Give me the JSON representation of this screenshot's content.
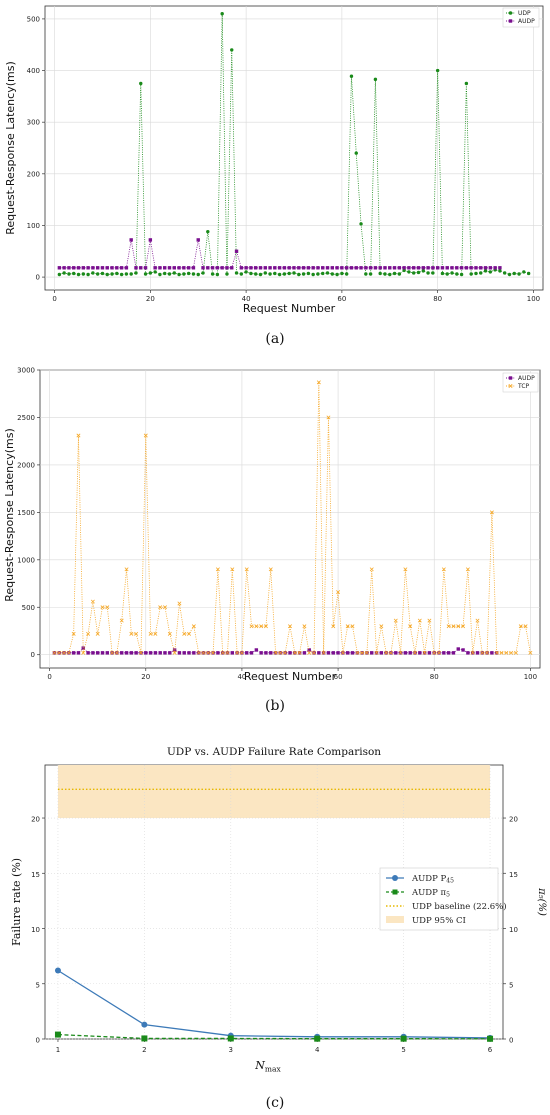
{
  "chart_data": [
    {
      "id": "a",
      "type": "line",
      "caption": "(a)",
      "xlabel": "Request Number",
      "ylabel": "Request-Response Latency(ms)",
      "xlim": [
        -2,
        102
      ],
      "ylim": [
        -25,
        525
      ],
      "xticks": [
        0,
        20,
        40,
        60,
        80,
        100
      ],
      "yticks": [
        0,
        100,
        200,
        300,
        400,
        500
      ],
      "grid": true,
      "legend": "top-right",
      "series": [
        {
          "name": "UDP",
          "color": "#1a8a1a",
          "marker": "circle",
          "style": "dotted",
          "values": [
            5,
            8,
            6,
            7,
            5,
            6,
            5,
            8,
            6,
            7,
            5,
            6,
            7,
            5,
            6,
            6,
            8,
            375,
            6,
            8,
            10,
            5,
            7,
            6,
            8,
            5,
            6,
            7,
            6,
            5,
            8,
            88,
            6,
            5,
            510,
            6,
            440,
            8,
            6,
            10,
            7,
            6,
            5,
            8,
            6,
            7,
            5,
            6,
            7,
            8,
            5,
            6,
            7,
            5,
            6,
            7,
            8,
            6,
            5,
            7,
            6,
            389,
            240,
            103,
            6,
            6,
            383,
            7,
            6,
            5,
            7,
            6,
            13,
            10,
            8,
            9,
            12,
            8,
            8,
            400,
            7,
            6,
            8,
            6,
            5,
            375,
            6,
            7,
            8,
            12,
            10,
            14,
            12,
            8,
            5,
            7,
            6,
            10,
            7
          ]
        },
        {
          "name": "AUDP",
          "color": "#7a0f8f",
          "marker": "square",
          "style": "dotted",
          "values": [
            18,
            18,
            18,
            18,
            18,
            18,
            18,
            18,
            18,
            18,
            18,
            18,
            18,
            18,
            18,
            72,
            18,
            18,
            18,
            72,
            18,
            18,
            18,
            18,
            18,
            18,
            18,
            18,
            18,
            72,
            18,
            18,
            18,
            18,
            18,
            18,
            18,
            50,
            18,
            18,
            18,
            18,
            18,
            18,
            18,
            18,
            18,
            18,
            18,
            18,
            18,
            18,
            18,
            18,
            18,
            18,
            18,
            18,
            18,
            18,
            18,
            18,
            18,
            18,
            18,
            18,
            18,
            18,
            18,
            18,
            18,
            18,
            18,
            18,
            18,
            18,
            18,
            18,
            18,
            18,
            18,
            18,
            18,
            18,
            18,
            18,
            18,
            18,
            18,
            18,
            18,
            18,
            18
          ]
        }
      ]
    },
    {
      "id": "b",
      "type": "line",
      "caption": "(b)",
      "xlabel": "Request Number",
      "ylabel": "Request-Response Latency(ms)",
      "xlim": [
        -2,
        102
      ],
      "ylim": [
        -140,
        3000
      ],
      "xticks": [
        0,
        20,
        40,
        60,
        80,
        100
      ],
      "yticks": [
        0,
        500,
        1000,
        1500,
        2000,
        2500,
        3000
      ],
      "grid": true,
      "legend": "top-right",
      "series": [
        {
          "name": "AUDP",
          "color": "#7a0f8f",
          "marker": "square",
          "style": "dotted",
          "values": [
            20,
            20,
            20,
            20,
            20,
            20,
            70,
            20,
            20,
            20,
            20,
            20,
            20,
            20,
            20,
            20,
            20,
            20,
            20,
            20,
            20,
            20,
            20,
            20,
            20,
            50,
            20,
            20,
            20,
            20,
            20,
            20,
            20,
            20,
            20,
            20,
            20,
            20,
            20,
            20,
            20,
            20,
            50,
            20,
            20,
            20,
            20,
            20,
            20,
            20,
            20,
            20,
            20,
            50,
            20,
            20,
            20,
            20,
            20,
            20,
            20,
            20,
            20,
            20,
            20,
            20,
            20,
            20,
            20,
            20,
            20,
            20,
            20,
            20,
            20,
            20,
            20,
            20,
            20,
            20,
            20,
            20,
            20,
            20,
            60,
            50,
            20,
            20,
            20,
            20,
            20,
            20,
            20
          ]
        },
        {
          "name": "TCP",
          "color": "#f5a623",
          "marker": "x",
          "style": "dotted",
          "values": [
            20,
            20,
            20,
            20,
            220,
            2310,
            20,
            220,
            560,
            220,
            500,
            500,
            20,
            20,
            360,
            900,
            220,
            220,
            20,
            2310,
            220,
            220,
            500,
            500,
            220,
            20,
            540,
            220,
            220,
            300,
            20,
            20,
            20,
            20,
            900,
            20,
            20,
            900,
            20,
            20,
            900,
            300,
            300,
            300,
            300,
            900,
            20,
            20,
            20,
            300,
            20,
            20,
            300,
            20,
            20,
            2870,
            20,
            2500,
            300,
            660,
            20,
            300,
            300,
            20,
            20,
            20,
            900,
            20,
            300,
            20,
            20,
            360,
            20,
            900,
            300,
            20,
            360,
            20,
            360,
            20,
            20,
            900,
            300,
            300,
            300,
            300,
            900,
            20,
            360,
            20,
            20,
            1500,
            20,
            20,
            20,
            20,
            20,
            300,
            300,
            20
          ]
        }
      ]
    },
    {
      "id": "c",
      "type": "line",
      "caption": "(c)",
      "title": "UDP vs. AUDP Failure Rate Comparison",
      "xlabel": "N",
      "xlabel_sub": "max",
      "ylabel": "Failure rate (%)",
      "ylabel_right": "π₅(%)",
      "xlim": [
        0.85,
        6.15
      ],
      "ylim": [
        0,
        24.8
      ],
      "xticks": [
        1,
        2,
        3,
        4,
        5,
        6
      ],
      "yticks": [
        0,
        5,
        10,
        15,
        20
      ],
      "grid": true,
      "legend": "center-right",
      "x": [
        1,
        2,
        3,
        4,
        5,
        6
      ],
      "series": [
        {
          "name": "AUDP P",
          "name_sub": "45",
          "color": "#3d7ab8",
          "marker": "circle",
          "style": "solid",
          "values": [
            6.2,
            1.3,
            0.3,
            0.2,
            0.2,
            0.1
          ]
        },
        {
          "name": "AUDP π",
          "name_sub": "5",
          "color": "#1a8a1a",
          "marker": "square",
          "style": "dashed",
          "values": [
            0.4,
            0.05,
            0.05,
            0.03,
            0.03,
            0.02
          ]
        }
      ],
      "baseline": {
        "name": "UDP baseline (22.6%)",
        "value": 22.6,
        "color": "#e6b800"
      },
      "band": {
        "name": "UDP 95% CI",
        "low": 20.0,
        "high": 25.0,
        "color": "#fbe6c2"
      }
    }
  ]
}
